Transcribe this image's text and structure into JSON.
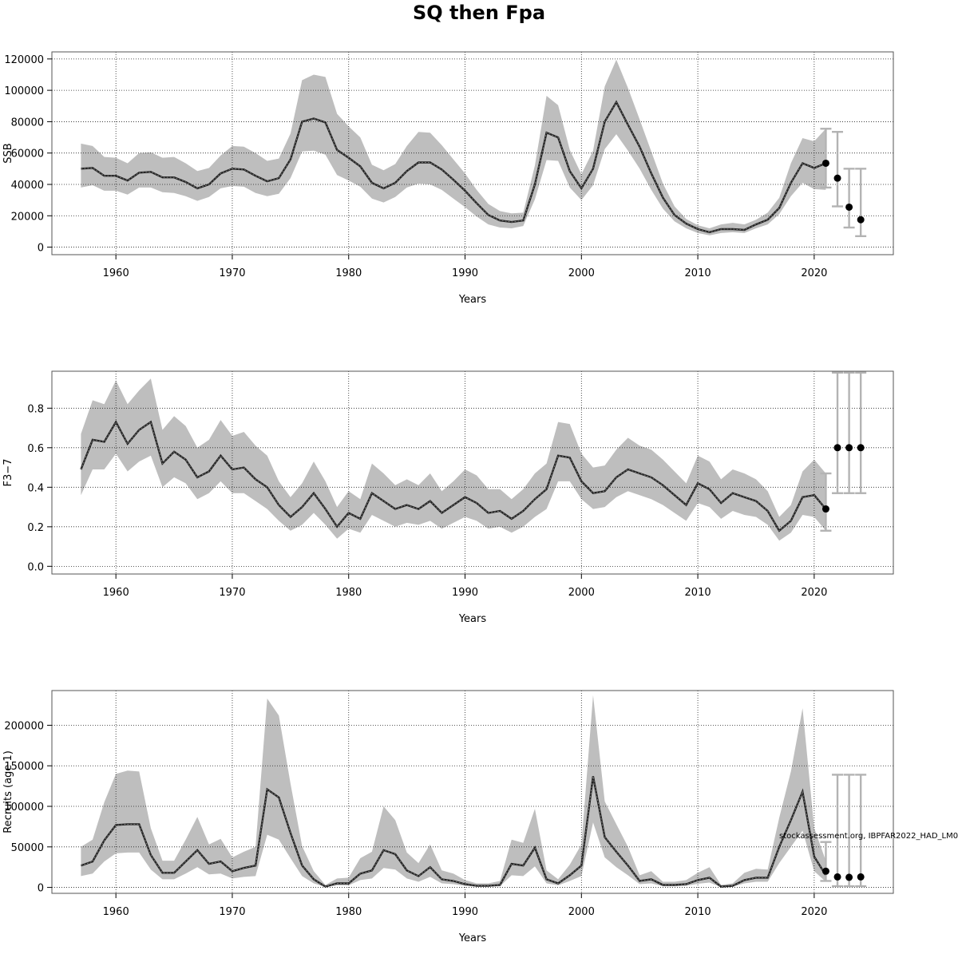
{
  "title": "SQ then Fpa",
  "watermark": "stockassessment.org, IBPFAR2022_HAD_LM0",
  "colors": {
    "band": "#bebebe",
    "line": "#222222",
    "frame": "#555555",
    "point": "#000000",
    "errorbar": "#b3b3b3"
  },
  "chart_data": [
    {
      "type": "line",
      "name": "ssb",
      "ylabel": "SSB",
      "xlabel": "Years",
      "xlim": [
        1954.5,
        2026.8
      ],
      "ylim": [
        -4800,
        124500
      ],
      "xticks": [
        1960,
        1970,
        1980,
        1990,
        2000,
        2010,
        2020
      ],
      "yticks": [
        0,
        20000,
        40000,
        60000,
        80000,
        100000,
        120000
      ],
      "grid": true,
      "x": [
        1957,
        1958,
        1959,
        1960,
        1961,
        1962,
        1963,
        1964,
        1965,
        1966,
        1967,
        1968,
        1969,
        1970,
        1971,
        1972,
        1973,
        1974,
        1975,
        1976,
        1977,
        1978,
        1979,
        1980,
        1981,
        1982,
        1983,
        1984,
        1985,
        1986,
        1987,
        1988,
        1989,
        1990,
        1991,
        1992,
        1993,
        1994,
        1995,
        1996,
        1997,
        1998,
        1999,
        2000,
        2001,
        2002,
        2003,
        2004,
        2005,
        2006,
        2007,
        2008,
        2009,
        2010,
        2011,
        2012,
        2013,
        2014,
        2015,
        2016,
        2017,
        2018,
        2019,
        2020,
        2021
      ],
      "estimate": [
        50000,
        50500,
        45500,
        45500,
        42500,
        47500,
        48000,
        44500,
        44500,
        41500,
        37500,
        40000,
        47000,
        50000,
        49500,
        45500,
        42000,
        44000,
        56000,
        80000,
        82000,
        79500,
        62000,
        57000,
        51500,
        41000,
        37500,
        41000,
        48500,
        54000,
        54000,
        49500,
        43000,
        36000,
        28000,
        20500,
        17000,
        16000,
        17000,
        40000,
        73000,
        70000,
        48500,
        37500,
        50000,
        80000,
        92500,
        78000,
        64000,
        47000,
        31500,
        20500,
        15000,
        11500,
        9500,
        11500,
        11500,
        11000,
        14500,
        17500,
        25000,
        41000,
        53500,
        50500,
        53500
      ],
      "lower": [
        38000,
        39500,
        36000,
        36000,
        33500,
        38000,
        38000,
        35000,
        34500,
        32500,
        29500,
        32000,
        37500,
        39000,
        38500,
        34500,
        32500,
        34000,
        44000,
        61000,
        61500,
        59000,
        46000,
        42500,
        38500,
        31000,
        28500,
        32000,
        38000,
        40500,
        40000,
        36500,
        31000,
        25500,
        19500,
        14500,
        12500,
        12000,
        13500,
        30500,
        55500,
        55000,
        38000,
        30000,
        39500,
        62500,
        72000,
        61500,
        50000,
        36500,
        24500,
        16500,
        12000,
        9000,
        7500,
        9000,
        9500,
        9000,
        12000,
        14500,
        21000,
        32500,
        41000,
        37000,
        36500
      ],
      "upper": [
        66000,
        64500,
        57500,
        57000,
        53500,
        60000,
        60500,
        57000,
        57500,
        53500,
        48500,
        50500,
        58500,
        64500,
        64000,
        60000,
        55000,
        56500,
        72500,
        106500,
        110000,
        108500,
        85000,
        77000,
        70000,
        52500,
        49000,
        53000,
        64500,
        73500,
        73000,
        65000,
        56000,
        47000,
        36500,
        27500,
        23000,
        21500,
        22000,
        52000,
        96500,
        90500,
        62000,
        46500,
        61500,
        102500,
        119500,
        101500,
        81500,
        61000,
        40500,
        26000,
        18000,
        14000,
        12000,
        14500,
        15500,
        14500,
        17500,
        22000,
        31500,
        53500,
        69500,
        67500,
        75500
      ],
      "forecast": {
        "x": [
          2021,
          2022,
          2023,
          2024
        ],
        "median": [
          53500,
          44000,
          25500,
          17500
        ],
        "lower": [
          38000,
          26000,
          12500,
          7000
        ],
        "upper": [
          75500,
          73500,
          50000,
          50000
        ]
      }
    },
    {
      "type": "line",
      "name": "fbar",
      "ylabel": "F3−7",
      "xlabel": "Years",
      "xlim": [
        1954.5,
        2026.8
      ],
      "ylim": [
        -0.039,
        0.987
      ],
      "xticks": [
        1960,
        1970,
        1980,
        1990,
        2000,
        2010,
        2020
      ],
      "yticks": [
        0.0,
        0.2,
        0.4,
        0.6,
        0.8
      ],
      "grid": true,
      "x": [
        1957,
        1958,
        1959,
        1960,
        1961,
        1962,
        1963,
        1964,
        1965,
        1966,
        1967,
        1968,
        1969,
        1970,
        1971,
        1972,
        1973,
        1974,
        1975,
        1976,
        1977,
        1978,
        1979,
        1980,
        1981,
        1982,
        1983,
        1984,
        1985,
        1986,
        1987,
        1988,
        1989,
        1990,
        1991,
        1992,
        1993,
        1994,
        1995,
        1996,
        1997,
        1998,
        1999,
        2000,
        2001,
        2002,
        2003,
        2004,
        2005,
        2006,
        2007,
        2008,
        2009,
        2010,
        2011,
        2012,
        2013,
        2014,
        2015,
        2016,
        2017,
        2018,
        2019,
        2020,
        2021
      ],
      "estimate": [
        0.49,
        0.64,
        0.63,
        0.73,
        0.62,
        0.69,
        0.73,
        0.52,
        0.58,
        0.54,
        0.45,
        0.48,
        0.56,
        0.49,
        0.5,
        0.44,
        0.4,
        0.31,
        0.25,
        0.3,
        0.37,
        0.29,
        0.2,
        0.27,
        0.24,
        0.37,
        0.33,
        0.29,
        0.31,
        0.29,
        0.33,
        0.27,
        0.31,
        0.35,
        0.32,
        0.27,
        0.28,
        0.24,
        0.28,
        0.34,
        0.39,
        0.56,
        0.55,
        0.43,
        0.37,
        0.38,
        0.45,
        0.49,
        0.47,
        0.45,
        0.41,
        0.36,
        0.31,
        0.42,
        0.39,
        0.32,
        0.37,
        0.35,
        0.33,
        0.28,
        0.18,
        0.23,
        0.35,
        0.36,
        0.29
      ],
      "lower": [
        0.36,
        0.49,
        0.49,
        0.57,
        0.48,
        0.53,
        0.56,
        0.4,
        0.45,
        0.42,
        0.34,
        0.37,
        0.43,
        0.37,
        0.37,
        0.33,
        0.29,
        0.23,
        0.18,
        0.21,
        0.27,
        0.21,
        0.14,
        0.19,
        0.17,
        0.26,
        0.23,
        0.2,
        0.22,
        0.21,
        0.23,
        0.19,
        0.22,
        0.25,
        0.23,
        0.19,
        0.2,
        0.17,
        0.2,
        0.25,
        0.29,
        0.43,
        0.43,
        0.34,
        0.29,
        0.3,
        0.35,
        0.38,
        0.36,
        0.34,
        0.31,
        0.27,
        0.23,
        0.32,
        0.3,
        0.24,
        0.28,
        0.26,
        0.25,
        0.21,
        0.13,
        0.17,
        0.26,
        0.25,
        0.18
      ],
      "upper": [
        0.67,
        0.84,
        0.82,
        0.94,
        0.82,
        0.89,
        0.95,
        0.69,
        0.76,
        0.71,
        0.6,
        0.64,
        0.74,
        0.66,
        0.68,
        0.61,
        0.56,
        0.43,
        0.35,
        0.42,
        0.53,
        0.43,
        0.3,
        0.38,
        0.34,
        0.52,
        0.47,
        0.41,
        0.44,
        0.41,
        0.47,
        0.38,
        0.43,
        0.49,
        0.46,
        0.39,
        0.39,
        0.34,
        0.39,
        0.47,
        0.52,
        0.73,
        0.72,
        0.57,
        0.5,
        0.51,
        0.59,
        0.65,
        0.61,
        0.59,
        0.54,
        0.48,
        0.42,
        0.56,
        0.53,
        0.44,
        0.49,
        0.47,
        0.44,
        0.38,
        0.25,
        0.31,
        0.48,
        0.54,
        0.47
      ],
      "forecast": {
        "x": [
          2021,
          2022,
          2023,
          2024
        ],
        "median": [
          0.29,
          0.6,
          0.6,
          0.6
        ],
        "lower": [
          0.18,
          0.37,
          0.37,
          0.37
        ],
        "upper": [
          0.47,
          0.98,
          0.98,
          0.98
        ]
      }
    },
    {
      "type": "line",
      "name": "recruits",
      "ylabel": "Recruits (age 1)",
      "xlabel": "Years",
      "xlim": [
        1954.5,
        2026.8
      ],
      "ylim": [
        -7300,
        242800
      ],
      "xticks": [
        1960,
        1970,
        1980,
        1990,
        2000,
        2010,
        2020
      ],
      "yticks": [
        0,
        50000,
        100000,
        150000,
        200000
      ],
      "grid": true,
      "x": [
        1957,
        1958,
        1959,
        1960,
        1961,
        1962,
        1963,
        1964,
        1965,
        1966,
        1967,
        1968,
        1969,
        1970,
        1971,
        1972,
        1973,
        1974,
        1975,
        1976,
        1977,
        1978,
        1979,
        1980,
        1981,
        1982,
        1983,
        1984,
        1985,
        1986,
        1987,
        1988,
        1989,
        1990,
        1991,
        1992,
        1993,
        1994,
        1995,
        1996,
        1997,
        1998,
        1999,
        2000,
        2001,
        2002,
        2003,
        2004,
        2005,
        2006,
        2007,
        2008,
        2009,
        2010,
        2011,
        2012,
        2013,
        2014,
        2015,
        2016,
        2017,
        2018,
        2019,
        2020,
        2021
      ],
      "estimate": [
        27000,
        32000,
        58000,
        77000,
        78000,
        78000,
        40000,
        18000,
        18000,
        32000,
        46000,
        29000,
        32000,
        20000,
        24000,
        27000,
        121000,
        111000,
        67000,
        27000,
        10000,
        1000,
        5000,
        5000,
        17000,
        21000,
        46000,
        41000,
        21000,
        14000,
        25000,
        10000,
        8000,
        4000,
        2000,
        2000,
        3000,
        29000,
        27000,
        49000,
        10000,
        5000,
        15000,
        27000,
        137000,
        62000,
        44000,
        27000,
        8000,
        10000,
        3000,
        3000,
        4000,
        9000,
        12000,
        1000,
        2000,
        9000,
        12000,
        12000,
        50000,
        83000,
        118000,
        38000,
        15000
      ],
      "lower": [
        14000,
        17000,
        32000,
        42000,
        43000,
        43000,
        22000,
        10000,
        10000,
        17000,
        25000,
        16000,
        17000,
        11000,
        13000,
        14000,
        65000,
        59000,
        36000,
        14000,
        5000,
        500,
        2500,
        2500,
        9000,
        11000,
        24000,
        22000,
        11000,
        7000,
        13000,
        5000,
        4000,
        2000,
        1000,
        1000,
        1500,
        15000,
        14000,
        26000,
        5000,
        2500,
        8000,
        14000,
        80000,
        37000,
        25000,
        15000,
        4000,
        5000,
        1500,
        1500,
        2000,
        4500,
        6000,
        500,
        1000,
        5000,
        7000,
        7000,
        30000,
        50000,
        70000,
        20000,
        7000
      ],
      "upper": [
        50000,
        59000,
        105000,
        140000,
        144000,
        143000,
        73000,
        33000,
        33000,
        59000,
        87000,
        53000,
        60000,
        37000,
        44000,
        50000,
        233000,
        212000,
        128000,
        51000,
        20000,
        3000,
        11000,
        12000,
        36000,
        44000,
        100000,
        83000,
        43000,
        30000,
        53000,
        21000,
        17000,
        9000,
        5000,
        5000,
        8000,
        59000,
        55000,
        97000,
        21000,
        10000,
        28000,
        53000,
        237000,
        106000,
        78000,
        50000,
        15000,
        20000,
        7000,
        7000,
        9000,
        18000,
        25000,
        3000,
        5000,
        18000,
        23000,
        22000,
        86000,
        143000,
        221000,
        73000,
        33000
      ],
      "forecast": {
        "x": [
          2021,
          2022,
          2023,
          2024
        ],
        "median": [
          20000,
          13000,
          12500,
          13000
        ],
        "lower": [
          8000,
          1500,
          1500,
          1500
        ],
        "upper": [
          56000,
          139000,
          139000,
          139000
        ]
      }
    }
  ]
}
